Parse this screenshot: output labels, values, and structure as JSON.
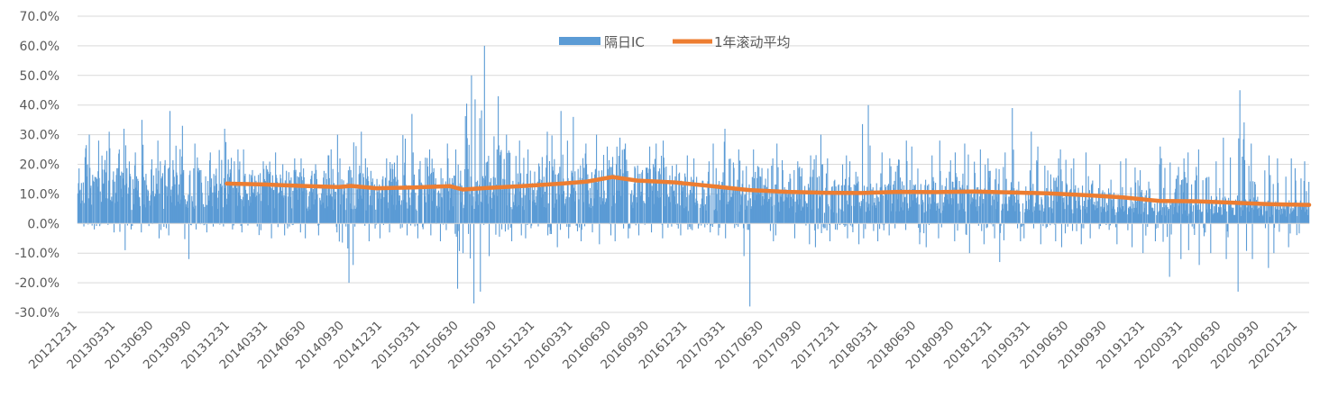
{
  "chart_data": {
    "type": "bar+line",
    "title": "",
    "xlabel": "",
    "ylabel": "",
    "ylim": [
      -0.3,
      0.7
    ],
    "y_ticks": [
      "70.0%",
      "60.0%",
      "50.0%",
      "40.0%",
      "30.0%",
      "20.0%",
      "10.0%",
      "0.0%",
      "-10.0%",
      "-20.0%",
      "-30.0%"
    ],
    "y_tick_values": [
      0.7,
      0.6,
      0.5,
      0.4,
      0.3,
      0.2,
      0.1,
      0.0,
      -0.1,
      -0.2,
      -0.3
    ],
    "x_tick_labels": [
      "20121231",
      "20130331",
      "20130630",
      "20130930",
      "20131231",
      "20140331",
      "20140630",
      "20140930",
      "20141231",
      "20150331",
      "20150630",
      "20150930",
      "20151231",
      "20160331",
      "20160630",
      "20160930",
      "20161231",
      "20170331",
      "20170630",
      "20170930",
      "20171231",
      "20180331",
      "20180630",
      "20180930",
      "20181231",
      "20190331",
      "20190630",
      "20190930",
      "20191231",
      "20200331",
      "20200630",
      "20200930",
      "20201231"
    ],
    "x_range": [
      "20121231",
      "20210331"
    ],
    "grid": true,
    "legend_position": "top-center",
    "series": [
      {
        "name": "隔日IC",
        "type": "bar",
        "color": "#5B9BD5",
        "sampling": "approximate monthly summary of daily bars (typical, max, min)",
        "dates": [
          "20121231",
          "20130131",
          "20130228",
          "20130331",
          "20130430",
          "20130531",
          "20130630",
          "20130731",
          "20130831",
          "20130930",
          "20131031",
          "20131130",
          "20131231",
          "20140131",
          "20140228",
          "20140331",
          "20140430",
          "20140531",
          "20140630",
          "20140731",
          "20140831",
          "20140930",
          "20141031",
          "20141130",
          "20141231",
          "20150131",
          "20150228",
          "20150331",
          "20150430",
          "20150531",
          "20150630",
          "20150731",
          "20150831",
          "20150930",
          "20151031",
          "20151130",
          "20151231",
          "20160131",
          "20160229",
          "20160331",
          "20160430",
          "20160531",
          "20160630",
          "20160731",
          "20160831",
          "20160930",
          "20161031",
          "20161130",
          "20161231",
          "20170131",
          "20170228",
          "20170331",
          "20170430",
          "20170531",
          "20170630",
          "20170731",
          "20170831",
          "20170930",
          "20171031",
          "20171130",
          "20171231",
          "20180131",
          "20180228",
          "20180331",
          "20180430",
          "20180531",
          "20180630",
          "20180731",
          "20180831",
          "20180930",
          "20181031",
          "20181130",
          "20181231",
          "20190131",
          "20190228",
          "20190331",
          "20190430",
          "20190531",
          "20190630",
          "20190731",
          "20190831",
          "20190930",
          "20191031",
          "20191130",
          "20191231",
          "20200131",
          "20200229",
          "20200331",
          "20200430",
          "20200531",
          "20200630",
          "20200731",
          "20200831",
          "20200930",
          "20201031",
          "20201130",
          "20201231",
          "20210131",
          "20210228",
          "20210331"
        ],
        "typical": [
          0.14,
          0.13,
          0.14,
          0.14,
          0.13,
          0.15,
          0.14,
          0.16,
          0.15,
          0.14,
          0.13,
          0.14,
          0.14,
          0.13,
          0.12,
          0.13,
          0.12,
          0.13,
          0.12,
          0.12,
          0.13,
          0.12,
          0.13,
          0.12,
          0.12,
          0.12,
          0.13,
          0.12,
          0.13,
          0.12,
          0.12,
          0.14,
          0.16,
          0.12,
          0.12,
          0.13,
          0.13,
          0.14,
          0.15,
          0.15,
          0.14,
          0.14,
          0.15,
          0.16,
          0.14,
          0.14,
          0.14,
          0.13,
          0.13,
          0.12,
          0.11,
          0.11,
          0.11,
          0.11,
          0.12,
          0.1,
          0.1,
          0.1,
          0.1,
          0.1,
          0.1,
          0.1,
          0.1,
          0.11,
          0.1,
          0.1,
          0.11,
          0.1,
          0.1,
          0.1,
          0.11,
          0.1,
          0.1,
          0.1,
          0.1,
          0.11,
          0.1,
          0.1,
          0.1,
          0.09,
          0.09,
          0.09,
          0.09,
          0.08,
          0.08,
          0.08,
          0.07,
          0.07,
          0.08,
          0.07,
          0.07,
          0.07,
          0.07,
          0.07,
          0.07,
          0.06,
          0.06,
          0.06,
          0.06,
          0.06
        ],
        "max": [
          0.3,
          0.28,
          0.31,
          0.32,
          0.24,
          0.35,
          0.28,
          0.38,
          0.33,
          0.27,
          0.24,
          0.32,
          0.25,
          0.25,
          0.21,
          0.24,
          0.2,
          0.22,
          0.22,
          0.2,
          0.3,
          0.22,
          0.31,
          0.22,
          0.22,
          0.23,
          0.37,
          0.24,
          0.25,
          0.27,
          0.25,
          0.5,
          0.6,
          0.43,
          0.3,
          0.28,
          0.25,
          0.31,
          0.38,
          0.36,
          0.27,
          0.3,
          0.26,
          0.29,
          0.27,
          0.26,
          0.27,
          0.28,
          0.23,
          0.22,
          0.21,
          0.27,
          0.32,
          0.25,
          0.25,
          0.22,
          0.27,
          0.21,
          0.23,
          0.3,
          0.22,
          0.23,
          0.21,
          0.4,
          0.24,
          0.22,
          0.28,
          0.26,
          0.23,
          0.28,
          0.24,
          0.27,
          0.25,
          0.22,
          0.24,
          0.39,
          0.31,
          0.26,
          0.22,
          0.25,
          0.22,
          0.24,
          0.2,
          0.21,
          0.22,
          0.18,
          0.2,
          0.26,
          0.22,
          0.24,
          0.25,
          0.21,
          0.29,
          0.45,
          0.27,
          0.23,
          0.22,
          0.22,
          0.21,
          0.2
        ],
        "min": [
          -0.01,
          -0.02,
          -0.03,
          -0.09,
          -0.02,
          -0.03,
          -0.05,
          -0.04,
          -0.12,
          -0.02,
          -0.03,
          -0.01,
          -0.02,
          -0.03,
          -0.1,
          -0.05,
          -0.04,
          -0.03,
          -0.05,
          -0.04,
          -0.03,
          -0.2,
          -0.14,
          -0.06,
          -0.05,
          -0.03,
          -0.04,
          -0.05,
          -0.04,
          -0.06,
          -0.22,
          -0.27,
          -0.23,
          -0.11,
          -0.06,
          -0.04,
          -0.05,
          -0.04,
          -0.08,
          -0.05,
          -0.06,
          -0.07,
          -0.04,
          -0.06,
          -0.05,
          -0.04,
          -0.03,
          -0.05,
          -0.04,
          -0.05,
          -0.03,
          -0.04,
          -0.05,
          -0.11,
          -0.28,
          -0.06,
          -0.04,
          -0.05,
          -0.07,
          -0.08,
          -0.06,
          -0.05,
          -0.07,
          -0.05,
          -0.06,
          -0.04,
          -0.05,
          -0.07,
          -0.08,
          -0.05,
          -0.06,
          -0.1,
          -0.07,
          -0.05,
          -0.13,
          -0.06,
          -0.05,
          -0.07,
          -0.06,
          -0.08,
          -0.07,
          -0.05,
          -0.06,
          -0.07,
          -0.08,
          -0.1,
          -0.06,
          -0.18,
          -0.12,
          -0.09,
          -0.14,
          -0.1,
          -0.12,
          -0.23,
          -0.12,
          -0.15,
          -0.1,
          -0.08,
          -0.09,
          -0.14
        ]
      },
      {
        "name": "1年滚动平均",
        "type": "line",
        "color": "#ED7D31",
        "points": [
          {
            "x": "20131231",
            "y": 0.135
          },
          {
            "x": "20140331",
            "y": 0.132
          },
          {
            "x": "20140630",
            "y": 0.127
          },
          {
            "x": "20140930",
            "y": 0.123
          },
          {
            "x": "20141031",
            "y": 0.127
          },
          {
            "x": "20141231",
            "y": 0.119
          },
          {
            "x": "20150331",
            "y": 0.122
          },
          {
            "x": "20150630",
            "y": 0.126
          },
          {
            "x": "20150731",
            "y": 0.115
          },
          {
            "x": "20150930",
            "y": 0.12
          },
          {
            "x": "20151231",
            "y": 0.127
          },
          {
            "x": "20160331",
            "y": 0.135
          },
          {
            "x": "20160531",
            "y": 0.142
          },
          {
            "x": "20160731",
            "y": 0.157
          },
          {
            "x": "20160930",
            "y": 0.145
          },
          {
            "x": "20161231",
            "y": 0.139
          },
          {
            "x": "20170331",
            "y": 0.126
          },
          {
            "x": "20170630",
            "y": 0.113
          },
          {
            "x": "20170930",
            "y": 0.107
          },
          {
            "x": "20171231",
            "y": 0.104
          },
          {
            "x": "20180331",
            "y": 0.103
          },
          {
            "x": "20180630",
            "y": 0.107
          },
          {
            "x": "20180930",
            "y": 0.106
          },
          {
            "x": "20181231",
            "y": 0.108
          },
          {
            "x": "20190331",
            "y": 0.105
          },
          {
            "x": "20190630",
            "y": 0.102
          },
          {
            "x": "20190930",
            "y": 0.096
          },
          {
            "x": "20191231",
            "y": 0.088
          },
          {
            "x": "20200331",
            "y": 0.076
          },
          {
            "x": "20200630",
            "y": 0.075
          },
          {
            "x": "20200930",
            "y": 0.07
          },
          {
            "x": "20201231",
            "y": 0.065
          },
          {
            "x": "20210331",
            "y": 0.063
          }
        ]
      }
    ]
  }
}
